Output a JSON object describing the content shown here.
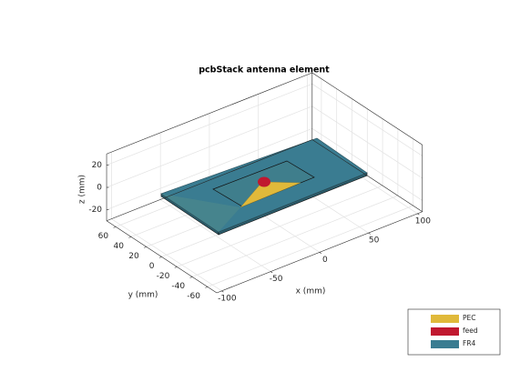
{
  "chart_data": {
    "type": "pcb3d",
    "title": "pcbStack antenna element",
    "xlabel": "x (mm)",
    "ylabel": "y (mm)",
    "zlabel": "z (mm)",
    "xlim": [
      -105,
      105
    ],
    "ylim": [
      -72,
      72
    ],
    "zlim": [
      -30,
      30
    ],
    "xticks": [
      -100,
      -50,
      0,
      50,
      100
    ],
    "yticks": [
      -60,
      -40,
      -20,
      0,
      20,
      40,
      60
    ],
    "zticks": [
      -20,
      0,
      20
    ],
    "grid": true,
    "legend_position": "southeast",
    "legend": [
      {
        "name": "PEC",
        "color": "#e0b93a"
      },
      {
        "name": "feed",
        "color": "#c0182f"
      },
      {
        "name": "FR4",
        "color": "#3a7c91"
      }
    ]
  }
}
